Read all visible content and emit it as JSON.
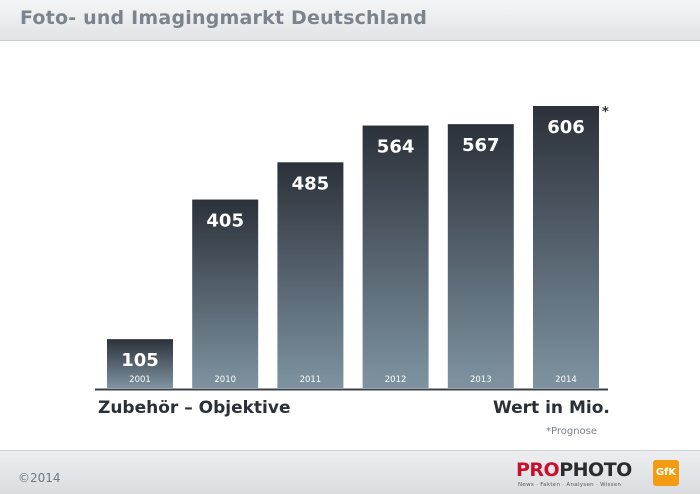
{
  "header": {
    "title": "Foto- und Imagingmarkt Deutschland"
  },
  "chart_data": {
    "type": "bar",
    "categories": [
      "2001",
      "2010",
      "2011",
      "2012",
      "2013",
      "2014"
    ],
    "values": [
      105,
      405,
      485,
      564,
      567,
      606
    ],
    "value_labels": [
      "105",
      "405",
      "485",
      "564",
      "567",
      "606"
    ],
    "forecast_marker": "*",
    "ylim": [
      0,
      606
    ],
    "grid": false,
    "category_label": "Zubehör – Objektive",
    "unit_label": "Wert in Mio.",
    "note": "*Prognose",
    "bar_color_top": "#2c313a",
    "bar_color_bottom": "#7e93a1"
  },
  "footer": {
    "copyright": "©2014",
    "logo_pro": "PRO",
    "logo_photo": "PHOTO",
    "logo_tagline": "News · Fakten · Analysen · Wissen",
    "gfk": "GfK"
  }
}
